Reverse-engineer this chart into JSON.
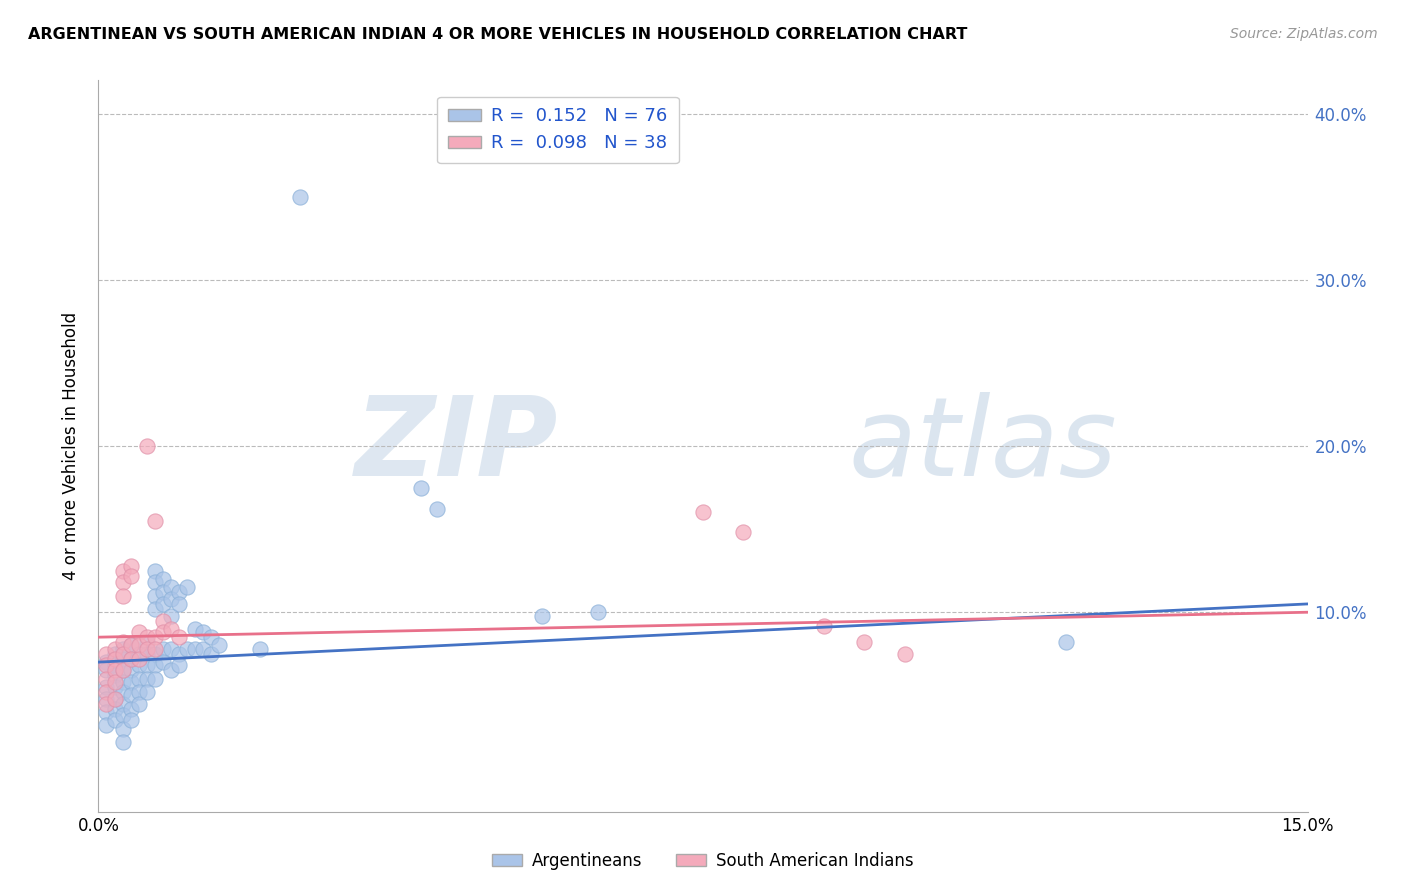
{
  "title": "ARGENTINEAN VS SOUTH AMERICAN INDIAN 4 OR MORE VEHICLES IN HOUSEHOLD CORRELATION CHART",
  "source": "Source: ZipAtlas.com",
  "ylabel": "4 or more Vehicles in Household",
  "xlim": [
    0.0,
    0.15
  ],
  "ylim": [
    -0.02,
    0.42
  ],
  "legend_blue_R": "0.152",
  "legend_blue_N": "76",
  "legend_pink_R": "0.098",
  "legend_pink_N": "38",
  "blue_color": "#aac4e8",
  "pink_color": "#f4aabb",
  "blue_line_color": "#4472c4",
  "pink_line_color": "#e8708a",
  "blue_scatter": [
    [
      0.001,
      0.07
    ],
    [
      0.001,
      0.065
    ],
    [
      0.001,
      0.055
    ],
    [
      0.001,
      0.048
    ],
    [
      0.001,
      0.04
    ],
    [
      0.001,
      0.032
    ],
    [
      0.002,
      0.075
    ],
    [
      0.002,
      0.068
    ],
    [
      0.002,
      0.062
    ],
    [
      0.002,
      0.055
    ],
    [
      0.002,
      0.048
    ],
    [
      0.002,
      0.042
    ],
    [
      0.002,
      0.035
    ],
    [
      0.003,
      0.078
    ],
    [
      0.003,
      0.072
    ],
    [
      0.003,
      0.065
    ],
    [
      0.003,
      0.058
    ],
    [
      0.003,
      0.052
    ],
    [
      0.003,
      0.045
    ],
    [
      0.003,
      0.038
    ],
    [
      0.003,
      0.03
    ],
    [
      0.003,
      0.022
    ],
    [
      0.004,
      0.08
    ],
    [
      0.004,
      0.072
    ],
    [
      0.004,
      0.065
    ],
    [
      0.004,
      0.058
    ],
    [
      0.004,
      0.05
    ],
    [
      0.004,
      0.042
    ],
    [
      0.004,
      0.035
    ],
    [
      0.005,
      0.075
    ],
    [
      0.005,
      0.068
    ],
    [
      0.005,
      0.06
    ],
    [
      0.005,
      0.052
    ],
    [
      0.005,
      0.045
    ],
    [
      0.006,
      0.082
    ],
    [
      0.006,
      0.075
    ],
    [
      0.006,
      0.068
    ],
    [
      0.006,
      0.06
    ],
    [
      0.006,
      0.052
    ],
    [
      0.007,
      0.125
    ],
    [
      0.007,
      0.118
    ],
    [
      0.007,
      0.11
    ],
    [
      0.007,
      0.102
    ],
    [
      0.007,
      0.075
    ],
    [
      0.007,
      0.068
    ],
    [
      0.007,
      0.06
    ],
    [
      0.008,
      0.12
    ],
    [
      0.008,
      0.112
    ],
    [
      0.008,
      0.105
    ],
    [
      0.008,
      0.078
    ],
    [
      0.008,
      0.07
    ],
    [
      0.009,
      0.115
    ],
    [
      0.009,
      0.108
    ],
    [
      0.009,
      0.098
    ],
    [
      0.009,
      0.078
    ],
    [
      0.009,
      0.065
    ],
    [
      0.01,
      0.112
    ],
    [
      0.01,
      0.105
    ],
    [
      0.01,
      0.075
    ],
    [
      0.01,
      0.068
    ],
    [
      0.011,
      0.115
    ],
    [
      0.011,
      0.078
    ],
    [
      0.012,
      0.09
    ],
    [
      0.012,
      0.078
    ],
    [
      0.013,
      0.088
    ],
    [
      0.013,
      0.078
    ],
    [
      0.014,
      0.085
    ],
    [
      0.014,
      0.075
    ],
    [
      0.015,
      0.08
    ],
    [
      0.02,
      0.078
    ],
    [
      0.025,
      0.35
    ],
    [
      0.04,
      0.175
    ],
    [
      0.042,
      0.162
    ],
    [
      0.055,
      0.098
    ],
    [
      0.062,
      0.1
    ],
    [
      0.12,
      0.082
    ]
  ],
  "pink_scatter": [
    [
      0.001,
      0.075
    ],
    [
      0.001,
      0.068
    ],
    [
      0.001,
      0.06
    ],
    [
      0.001,
      0.052
    ],
    [
      0.001,
      0.045
    ],
    [
      0.002,
      0.078
    ],
    [
      0.002,
      0.072
    ],
    [
      0.002,
      0.065
    ],
    [
      0.002,
      0.058
    ],
    [
      0.002,
      0.048
    ],
    [
      0.003,
      0.125
    ],
    [
      0.003,
      0.118
    ],
    [
      0.003,
      0.11
    ],
    [
      0.003,
      0.082
    ],
    [
      0.003,
      0.075
    ],
    [
      0.003,
      0.065
    ],
    [
      0.004,
      0.128
    ],
    [
      0.004,
      0.122
    ],
    [
      0.004,
      0.08
    ],
    [
      0.004,
      0.072
    ],
    [
      0.005,
      0.088
    ],
    [
      0.005,
      0.08
    ],
    [
      0.005,
      0.072
    ],
    [
      0.006,
      0.2
    ],
    [
      0.006,
      0.085
    ],
    [
      0.006,
      0.078
    ],
    [
      0.007,
      0.155
    ],
    [
      0.007,
      0.085
    ],
    [
      0.007,
      0.078
    ],
    [
      0.008,
      0.095
    ],
    [
      0.008,
      0.088
    ],
    [
      0.009,
      0.09
    ],
    [
      0.01,
      0.085
    ],
    [
      0.075,
      0.16
    ],
    [
      0.08,
      0.148
    ],
    [
      0.09,
      0.092
    ],
    [
      0.095,
      0.082
    ],
    [
      0.1,
      0.075
    ]
  ],
  "background_color": "#ffffff",
  "grid_color": "#cccccc",
  "watermark_color": "#dce8f5"
}
